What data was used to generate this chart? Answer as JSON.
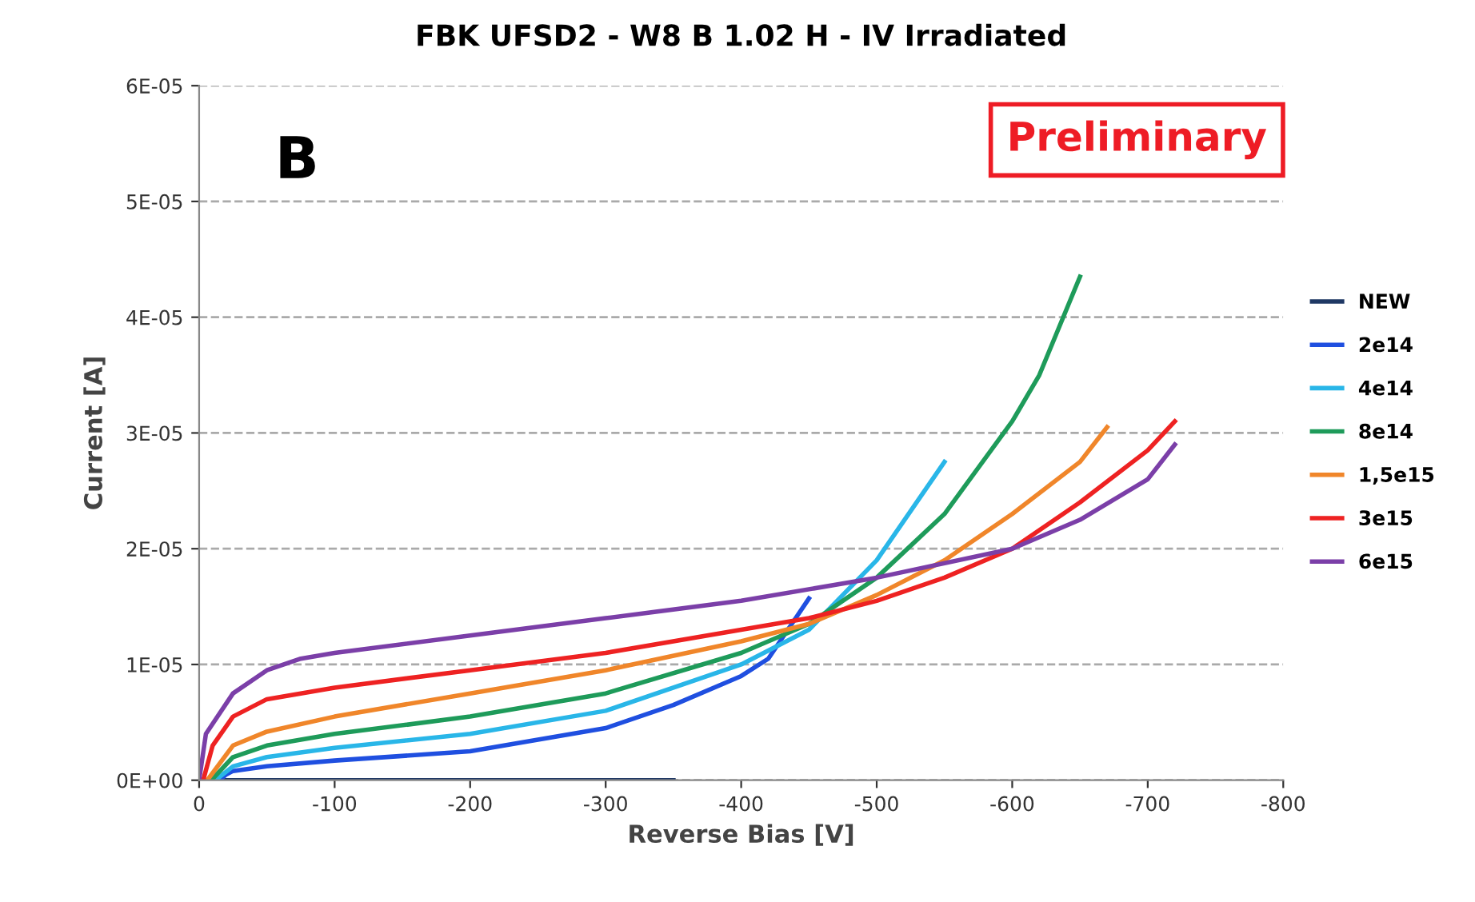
{
  "chart_data": {
    "type": "line",
    "title": "FBK UFSD2 - W8 B 1.02 H - IV Irradiated",
    "xlabel": "Reverse Bias [V]",
    "ylabel": "Current [A]",
    "xlim": [
      0,
      -800
    ],
    "xticks": [
      0,
      -100,
      -200,
      -300,
      -400,
      -500,
      -600,
      -700,
      -800
    ],
    "ylim": [
      0,
      6e-05
    ],
    "yticks": [
      {
        "value": 0,
        "label": "0E+00"
      },
      {
        "value": 1e-05,
        "label": "1E-05"
      },
      {
        "value": 2e-05,
        "label": "2E-05"
      },
      {
        "value": 3e-05,
        "label": "3E-05"
      },
      {
        "value": 4e-05,
        "label": "4E-05"
      },
      {
        "value": 5e-05,
        "label": "5E-05"
      },
      {
        "value": 6e-05,
        "label": "6E-05"
      }
    ],
    "grid": "y",
    "legend": "right",
    "marker": "none",
    "line_style": "solid",
    "annotations": [
      "B",
      "Preliminary"
    ],
    "series": [
      {
        "name": "NEW",
        "color": "#1f3864",
        "x": [
          0,
          -100,
          -200,
          -300,
          -350
        ],
        "values": [
          0,
          0,
          0,
          0,
          0
        ]
      },
      {
        "name": "2e14",
        "color": "#1f4fe0",
        "x": [
          0,
          -15,
          -20,
          -25,
          -50,
          -100,
          -200,
          -300,
          -350,
          -400,
          -420,
          -450
        ],
        "values": [
          0,
          0,
          5e-07,
          8e-07,
          1.2e-06,
          1.7e-06,
          2.5e-06,
          4.5e-06,
          6.5e-06,
          9e-06,
          1.05e-05,
          1.57e-05
        ]
      },
      {
        "name": "4e14",
        "color": "#29b6e8",
        "x": [
          0,
          -12,
          -25,
          -50,
          -100,
          -200,
          -300,
          -400,
          -450,
          -500,
          -550
        ],
        "values": [
          0,
          0,
          1.2e-06,
          2e-06,
          2.8e-06,
          4e-06,
          6e-06,
          1e-05,
          1.3e-05,
          1.9e-05,
          2.75e-05
        ]
      },
      {
        "name": "8e14",
        "color": "#1e9b5a",
        "x": [
          0,
          -9,
          -25,
          -50,
          -100,
          -200,
          -300,
          -400,
          -450,
          -500,
          -550,
          -600,
          -620,
          -650
        ],
        "values": [
          0,
          0,
          2e-06,
          3e-06,
          4e-06,
          5.5e-06,
          7.5e-06,
          1.1e-05,
          1.35e-05,
          1.75e-05,
          2.3e-05,
          3.1e-05,
          3.5e-05,
          4.35e-05
        ]
      },
      {
        "name": "1,5e15",
        "color": "#f0862a",
        "x": [
          0,
          -6,
          -25,
          -50,
          -100,
          -200,
          -300,
          -400,
          -450,
          -500,
          -550,
          -600,
          -650,
          -670
        ],
        "values": [
          0,
          0,
          3e-06,
          4.2e-06,
          5.5e-06,
          7.5e-06,
          9.5e-06,
          1.2e-05,
          1.35e-05,
          1.6e-05,
          1.9e-05,
          2.3e-05,
          2.75e-05,
          3.05e-05
        ]
      },
      {
        "name": "3e15",
        "color": "#ee2222",
        "x": [
          0,
          -3,
          -10,
          -25,
          -50,
          -100,
          -200,
          -300,
          -400,
          -450,
          -500,
          -550,
          -600,
          -650,
          -700,
          -720
        ],
        "values": [
          0,
          0,
          3e-06,
          5.5e-06,
          7e-06,
          8e-06,
          9.5e-06,
          1.1e-05,
          1.3e-05,
          1.4e-05,
          1.55e-05,
          1.75e-05,
          2e-05,
          2.4e-05,
          2.85e-05,
          3.1e-05
        ]
      },
      {
        "name": "6e15",
        "color": "#7b3fa8",
        "x": [
          0,
          -5,
          -25,
          -50,
          -75,
          -100,
          -200,
          -300,
          -400,
          -500,
          -600,
          -650,
          -700,
          -720
        ],
        "values": [
          0,
          4e-06,
          7.5e-06,
          9.5e-06,
          1.05e-05,
          1.1e-05,
          1.25e-05,
          1.4e-05,
          1.55e-05,
          1.75e-05,
          2e-05,
          2.25e-05,
          2.6e-05,
          2.9e-05
        ]
      }
    ]
  }
}
